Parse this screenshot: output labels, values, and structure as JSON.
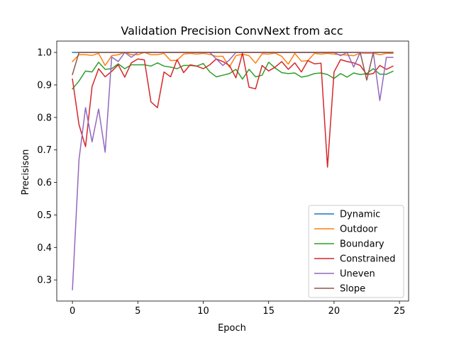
{
  "chart_data": {
    "type": "line",
    "title": "Validation Precision ConvNext from acc",
    "xlabel": "Epoch",
    "ylabel": "Precisison",
    "xlim": [
      -1.2,
      25.7
    ],
    "ylim": [
      0.235,
      1.035
    ],
    "xticks": [
      0,
      5,
      10,
      15,
      20,
      25
    ],
    "yticks": [
      0.3,
      0.4,
      0.5,
      0.6,
      0.7,
      0.8,
      0.9,
      1.0
    ],
    "grid": false,
    "legend_position": "lower-right",
    "x": [
      0,
      0.5,
      1,
      1.5,
      2,
      2.5,
      3,
      3.5,
      4,
      4.5,
      5,
      5.5,
      6,
      6.5,
      7,
      7.5,
      8,
      8.5,
      9,
      9.5,
      10,
      10.5,
      11,
      11.5,
      12,
      12.5,
      13,
      13.5,
      14,
      14.5,
      15,
      15.5,
      16,
      16.5,
      17,
      17.5,
      18,
      18.5,
      19,
      19.5,
      20,
      20.5,
      21,
      21.5,
      22,
      22.5,
      23,
      23.5,
      24,
      24.5
    ],
    "series": [
      {
        "name": "Dynamic",
        "color": "#1f77b4",
        "values": [
          1,
          1,
          1,
          1,
          1,
          1,
          1,
          1,
          1,
          1,
          1,
          1,
          1,
          1,
          1,
          1,
          1,
          1,
          1,
          1,
          1,
          1,
          1,
          1,
          1,
          1,
          1,
          1,
          1,
          1,
          1,
          1,
          1,
          1,
          1,
          1,
          1,
          1,
          1,
          1,
          1,
          1,
          1,
          1,
          1,
          1,
          1,
          1,
          1,
          1
        ]
      },
      {
        "name": "Outdoor",
        "color": "#ff7f0e",
        "values": [
          0.972,
          0.993,
          0.993,
          0.991,
          0.997,
          0.96,
          0.99,
          0.993,
          1,
          0.993,
          0.993,
          1,
          0.993,
          0.993,
          0.997,
          0.975,
          0.976,
          0.995,
          0.997,
          0.995,
          0.997,
          0.994,
          0.988,
          0.988,
          0.955,
          0.99,
          0.995,
          0.99,
          0.967,
          0.996,
          0.995,
          0.998,
          0.988,
          0.964,
          0.997,
          0.973,
          0.975,
          0.997,
          0.995,
          0.997,
          0.995,
          0.993,
          0.992,
          0.99,
          0.998,
          0.997,
          0.998,
          0.993,
          0.997,
          0.997
        ]
      },
      {
        "name": "Boundary",
        "color": "#2ca02c",
        "values": [
          0.888,
          0.912,
          0.943,
          0.94,
          0.97,
          0.948,
          0.95,
          0.965,
          0.95,
          0.962,
          0.962,
          0.962,
          0.958,
          0.968,
          0.958,
          0.955,
          0.95,
          0.96,
          0.96,
          0.958,
          0.966,
          0.94,
          0.925,
          0.93,
          0.935,
          0.948,
          0.918,
          0.948,
          0.925,
          0.93,
          0.97,
          0.952,
          0.938,
          0.935,
          0.937,
          0.924,
          0.928,
          0.935,
          0.937,
          0.932,
          0.92,
          0.935,
          0.924,
          0.937,
          0.932,
          0.935,
          0.95,
          0.933,
          0.933,
          0.942
        ]
      },
      {
        "name": "Constrained",
        "color": "#d62728",
        "values": [
          0.918,
          0.778,
          0.71,
          0.895,
          0.95,
          0.925,
          0.942,
          0.962,
          0.924,
          0.968,
          0.98,
          0.977,
          0.848,
          0.83,
          0.94,
          0.925,
          0.978,
          0.938,
          0.962,
          0.958,
          0.95,
          0.962,
          0.98,
          0.972,
          0.96,
          0.922,
          0.998,
          0.893,
          0.888,
          0.96,
          0.943,
          0.955,
          0.972,
          0.948,
          0.968,
          0.94,
          0.975,
          0.965,
          0.967,
          0.647,
          0.94,
          0.978,
          0.972,
          0.968,
          0.96,
          0.932,
          0.935,
          0.96,
          0.948,
          0.958
        ]
      },
      {
        "name": "Uneven",
        "color": "#9467bd",
        "values": [
          0.27,
          0.67,
          0.83,
          0.725,
          0.826,
          0.693,
          0.986,
          0.972,
          1,
          0.985,
          1,
          1,
          1,
          1,
          1,
          1,
          1,
          1,
          1,
          1,
          1,
          1,
          0.98,
          0.96,
          0.977,
          1,
          1,
          1,
          1,
          1,
          1,
          1,
          1,
          1,
          1,
          1,
          1,
          1,
          1,
          1,
          1,
          0.99,
          1,
          0.955,
          1,
          1,
          1,
          0.852,
          0.985,
          0.985
        ]
      },
      {
        "name": "Slope",
        "color": "#8c564b",
        "values": [
          0.932,
          1,
          1,
          1,
          1,
          1,
          1,
          1,
          1,
          1,
          1,
          1,
          1,
          1,
          1,
          1,
          1,
          1,
          1,
          1,
          1,
          1,
          1,
          1,
          1,
          1,
          1,
          1,
          1,
          1,
          1,
          1,
          1,
          1,
          1,
          1,
          1,
          1,
          1,
          1,
          1,
          1,
          1,
          1,
          1,
          0.915,
          1,
          1,
          1,
          1
        ]
      }
    ]
  }
}
